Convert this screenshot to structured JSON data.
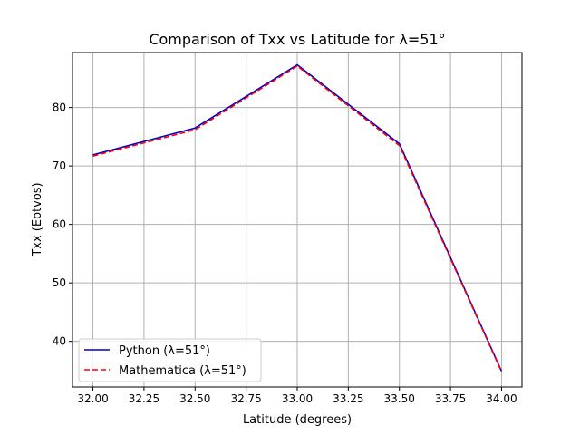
{
  "chart_data": {
    "type": "line",
    "title": "Comparison of Txx vs Latitude for λ=51°",
    "xlabel": "Latitude (degrees)",
    "ylabel": "Txx (Eotvos)",
    "x": [
      32.0,
      32.5,
      33.0,
      33.5,
      34.0
    ],
    "xlim": [
      31.9,
      34.1
    ],
    "ylim": [
      32.2,
      89.4
    ],
    "xticks": [
      32.0,
      32.25,
      32.5,
      32.75,
      33.0,
      33.25,
      33.5,
      33.75,
      34.0
    ],
    "xtick_labels": [
      "32.00",
      "32.25",
      "32.50",
      "32.75",
      "33.00",
      "33.25",
      "33.50",
      "33.75",
      "34.00"
    ],
    "yticks": [
      40,
      50,
      60,
      70,
      80
    ],
    "ytick_labels": [
      "40",
      "50",
      "60",
      "70",
      "80"
    ],
    "grid": true,
    "legend_position": "lower-left",
    "series": [
      {
        "name": "Python (λ=51°)",
        "values": [
          71.9,
          76.5,
          87.3,
          73.8,
          34.9
        ],
        "color": "#0000cc",
        "style": "solid"
      },
      {
        "name": "Mathematica (λ=51°)",
        "values": [
          71.7,
          76.2,
          87.1,
          73.5,
          34.8
        ],
        "color": "#ff0000",
        "style": "dashed"
      }
    ]
  }
}
